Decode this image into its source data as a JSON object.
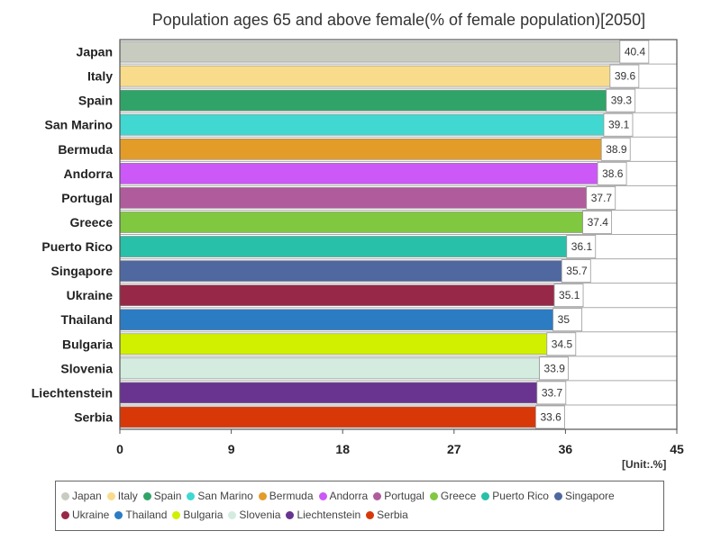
{
  "chart_data": {
    "type": "bar",
    "orientation": "horizontal",
    "title": "Population ages 65 and above female(% of female population)[2050]",
    "unit_label": "[Unit:.%]",
    "xlim": [
      0,
      45
    ],
    "x_ticks": [
      0,
      9,
      18,
      27,
      36,
      45
    ],
    "categories": [
      "Japan",
      "Italy",
      "Spain",
      "San Marino",
      "Bermuda",
      "Andorra",
      "Portugal",
      "Greece",
      "Puerto Rico",
      "Singapore",
      "Ukraine",
      "Thailand",
      "Bulgaria",
      "Slovenia",
      "Liechtenstein",
      "Serbia"
    ],
    "values": [
      40.4,
      39.6,
      39.3,
      39.1,
      38.9,
      38.6,
      37.7,
      37.4,
      36.1,
      35.7,
      35.1,
      35,
      34.5,
      33.9,
      33.7,
      33.6
    ],
    "colors": [
      "#c8ccc0",
      "#f8dc8c",
      "#30a468",
      "#40d8d0",
      "#e49c28",
      "#cc58f8",
      "#b05c9c",
      "#80c840",
      "#28c0a8",
      "#5068a0",
      "#982848",
      "#2c7cc4",
      "#d0f000",
      "#d4ece0",
      "#683490",
      "#d83808"
    ],
    "legend_position": "bottom",
    "grid": true
  }
}
